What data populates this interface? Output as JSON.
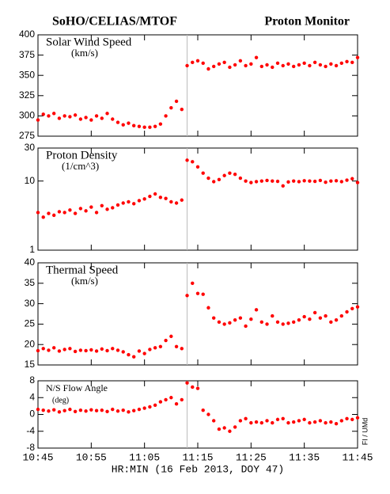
{
  "header": {
    "left": "SoHO/CELIAS/MTOF",
    "right": "Proton Monitor"
  },
  "x_axis_title": "HR:MIN (16 Feb 2013, DOY 47)",
  "credit": "FI / UMd",
  "chart_data": [
    {
      "type": "scatter",
      "title": "Solar Wind Speed",
      "subtitle": "(km/s)",
      "color": "#ff0000",
      "vline": "11:13",
      "xlim": [
        "10:45",
        "11:45"
      ],
      "xticks": [
        "10:45",
        "10:55",
        "11:05",
        "11:15",
        "11:25",
        "11:35",
        "11:45"
      ],
      "ylim": [
        275,
        400
      ],
      "yticks": [
        275,
        300,
        325,
        350,
        375,
        400
      ],
      "x": [
        "10:45",
        "10:46",
        "10:47",
        "10:48",
        "10:49",
        "10:50",
        "10:51",
        "10:52",
        "10:53",
        "10:54",
        "10:55",
        "10:56",
        "10:57",
        "10:58",
        "10:59",
        "11:00",
        "11:01",
        "11:02",
        "11:03",
        "11:04",
        "11:05",
        "11:06",
        "11:07",
        "11:08",
        "11:09",
        "11:10",
        "11:11",
        "11:12",
        "11:13",
        "11:14",
        "11:15",
        "11:16",
        "11:17",
        "11:18",
        "11:19",
        "11:20",
        "11:21",
        "11:22",
        "11:23",
        "11:24",
        "11:25",
        "11:26",
        "11:27",
        "11:28",
        "11:29",
        "11:30",
        "11:31",
        "11:32",
        "11:33",
        "11:34",
        "11:35",
        "11:36",
        "11:37",
        "11:38",
        "11:39",
        "11:40",
        "11:41",
        "11:42",
        "11:43",
        "11:44",
        "11:45"
      ],
      "values": [
        295,
        302,
        300,
        303,
        297,
        300,
        299,
        301,
        296,
        298,
        295,
        300,
        297,
        303,
        296,
        292,
        289,
        291,
        288,
        287,
        286,
        286,
        287,
        290,
        300,
        310,
        318,
        308,
        362,
        366,
        368,
        365,
        358,
        361,
        364,
        366,
        360,
        363,
        368,
        362,
        364,
        372,
        361,
        363,
        360,
        365,
        362,
        364,
        361,
        363,
        365,
        362,
        366,
        363,
        361,
        364,
        362,
        365,
        367,
        366,
        372
      ]
    },
    {
      "type": "scatter",
      "title": "Proton Density",
      "subtitle": "(1/cm^3)",
      "color": "#ff0000",
      "vline": "11:13",
      "log": true,
      "xlim": [
        "10:45",
        "11:45"
      ],
      "xticks": [
        "10:45",
        "10:55",
        "11:05",
        "11:15",
        "11:25",
        "11:35",
        "11:45"
      ],
      "ylim": [
        1,
        30
      ],
      "yticks": [
        1,
        10,
        30
      ],
      "x": [
        "10:45",
        "10:46",
        "10:47",
        "10:48",
        "10:49",
        "10:50",
        "10:51",
        "10:52",
        "10:53",
        "10:54",
        "10:55",
        "10:56",
        "10:57",
        "10:58",
        "10:59",
        "11:00",
        "11:01",
        "11:02",
        "11:03",
        "11:04",
        "11:05",
        "11:06",
        "11:07",
        "11:08",
        "11:09",
        "11:10",
        "11:11",
        "11:12",
        "11:13",
        "11:14",
        "11:15",
        "11:16",
        "11:17",
        "11:18",
        "11:19",
        "11:20",
        "11:21",
        "11:22",
        "11:23",
        "11:24",
        "11:25",
        "11:26",
        "11:27",
        "11:28",
        "11:29",
        "11:30",
        "11:31",
        "11:32",
        "11:33",
        "11:34",
        "11:35",
        "11:36",
        "11:37",
        "11:38",
        "11:39",
        "11:40",
        "11:41",
        "11:42",
        "11:43",
        "11:44",
        "11:45"
      ],
      "values": [
        3.5,
        3.0,
        3.4,
        3.2,
        3.6,
        3.5,
        3.8,
        3.4,
        4.0,
        3.7,
        4.2,
        3.5,
        4.4,
        3.9,
        4.1,
        4.5,
        4.8,
        5.0,
        4.7,
        5.2,
        5.5,
        6.0,
        6.5,
        5.8,
        5.6,
        5.0,
        4.8,
        5.3,
        20,
        19,
        16,
        13,
        11,
        9.8,
        10.5,
        12,
        13,
        12.5,
        11,
        10,
        9.5,
        9.8,
        10,
        10.2,
        10,
        9.9,
        8.5,
        9.7,
        10,
        9.8,
        10.1,
        10,
        9.9,
        10.2,
        9.6,
        10,
        10.1,
        9.8,
        10.3,
        10.8,
        9.5
      ]
    },
    {
      "type": "scatter",
      "title": "Thermal Speed",
      "subtitle": "(km/s)",
      "color": "#ff0000",
      "vline": "11:13",
      "xlim": [
        "10:45",
        "11:45"
      ],
      "xticks": [
        "10:45",
        "10:55",
        "11:05",
        "11:15",
        "11:25",
        "11:35",
        "11:45"
      ],
      "ylim": [
        15,
        40
      ],
      "yticks": [
        15,
        20,
        25,
        30,
        35,
        40
      ],
      "x": [
        "10:45",
        "10:46",
        "10:47",
        "10:48",
        "10:49",
        "10:50",
        "10:51",
        "10:52",
        "10:53",
        "10:54",
        "10:55",
        "10:56",
        "10:57",
        "10:58",
        "10:59",
        "11:00",
        "11:01",
        "11:02",
        "11:03",
        "11:04",
        "11:05",
        "11:06",
        "11:07",
        "11:08",
        "11:09",
        "11:10",
        "11:11",
        "11:12",
        "11:13",
        "11:14",
        "11:15",
        "11:16",
        "11:17",
        "11:18",
        "11:19",
        "11:20",
        "11:21",
        "11:22",
        "11:23",
        "11:24",
        "11:25",
        "11:26",
        "11:27",
        "11:28",
        "11:29",
        "11:30",
        "11:31",
        "11:32",
        "11:33",
        "11:34",
        "11:35",
        "11:36",
        "11:37",
        "11:38",
        "11:39",
        "11:40",
        "11:41",
        "11:42",
        "11:43",
        "11:44",
        "11:45"
      ],
      "values": [
        18.5,
        19,
        18.6,
        19.2,
        18.4,
        18.8,
        19,
        18.3,
        18.6,
        18.5,
        18.7,
        18.4,
        18.9,
        18.5,
        19,
        18.6,
        18.2,
        17.5,
        17,
        18.4,
        17.8,
        18.8,
        19.2,
        19.5,
        21,
        22,
        19.5,
        19,
        32,
        35,
        32.5,
        32.3,
        29,
        26.5,
        25.5,
        25,
        25.3,
        26,
        26.5,
        24.5,
        26.2,
        28.5,
        25.5,
        25,
        27,
        25.5,
        25,
        25.2,
        25.5,
        26,
        26.8,
        26.2,
        27.8,
        26.5,
        27,
        25.5,
        26,
        27,
        28,
        28.8,
        29.2
      ]
    },
    {
      "type": "scatter",
      "title": "N/S Flow Angle",
      "subtitle": "(deg)",
      "color": "#ff0000",
      "vline": "11:13",
      "xlim": [
        "10:45",
        "11:45"
      ],
      "xticks": [
        "10:45",
        "10:55",
        "11:05",
        "11:15",
        "11:25",
        "11:35",
        "11:45"
      ],
      "ylim": [
        -8,
        8
      ],
      "yticks": [
        -8,
        -4,
        0,
        4,
        8
      ],
      "x": [
        "10:45",
        "10:46",
        "10:47",
        "10:48",
        "10:49",
        "10:50",
        "10:51",
        "10:52",
        "10:53",
        "10:54",
        "10:55",
        "10:56",
        "10:57",
        "10:58",
        "10:59",
        "11:00",
        "11:01",
        "11:02",
        "11:03",
        "11:04",
        "11:05",
        "11:06",
        "11:07",
        "11:08",
        "11:09",
        "11:10",
        "11:11",
        "11:12",
        "11:13",
        "11:14",
        "11:15",
        "11:16",
        "11:17",
        "11:18",
        "11:19",
        "11:20",
        "11:21",
        "11:22",
        "11:23",
        "11:24",
        "11:25",
        "11:26",
        "11:27",
        "11:28",
        "11:29",
        "11:30",
        "11:31",
        "11:32",
        "11:33",
        "11:34",
        "11:35",
        "11:36",
        "11:37",
        "11:38",
        "11:39",
        "11:40",
        "11:41",
        "11:42",
        "11:43",
        "11:44",
        "11:45"
      ],
      "values": [
        1.2,
        1,
        0.8,
        1.1,
        0.6,
        0.9,
        1.2,
        0.7,
        1,
        0.8,
        1.1,
        0.9,
        1,
        0.7,
        1.2,
        0.8,
        1,
        0.6,
        0.9,
        1.2,
        1.5,
        1.8,
        2.2,
        3,
        3.5,
        4,
        2.5,
        3.5,
        7.5,
        6.5,
        6.2,
        1,
        0,
        -1.5,
        -3.5,
        -3.2,
        -4,
        -3,
        -1.5,
        -1,
        -2,
        -1.8,
        -2,
        -1.5,
        -2,
        -1.2,
        -1,
        -2,
        -1.8,
        -1.5,
        -1.2,
        -2,
        -1.8,
        -1.5,
        -2,
        -1.8,
        -2.2,
        -1.5,
        -1,
        -1.2,
        -0.8
      ]
    }
  ]
}
